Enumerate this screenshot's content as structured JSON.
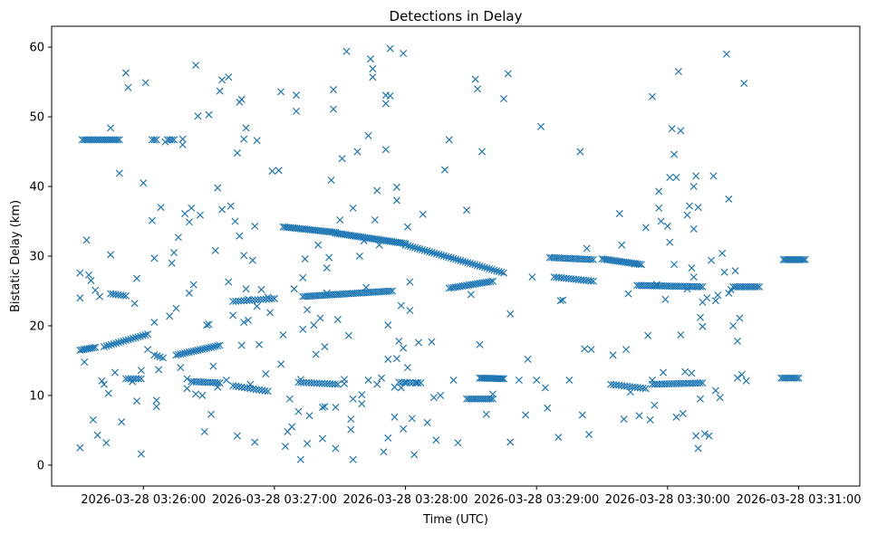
{
  "chart_data": {
    "type": "scatter",
    "title": "Detections in Delay",
    "xlabel": "Time (UTC)",
    "ylabel": "Bistatic Delay (km)",
    "x_unit": "seconds since 2026-03-28 03:26:00",
    "xlim": [
      -42,
      328
    ],
    "ylim": [
      -3,
      63
    ],
    "xticks": [
      {
        "value": 0,
        "label": "2026-03-28 03:26:00"
      },
      {
        "value": 60,
        "label": "2026-03-28 03:27:00"
      },
      {
        "value": 120,
        "label": "2026-03-28 03:28:00"
      },
      {
        "value": 180,
        "label": "2026-03-28 03:29:00"
      },
      {
        "value": 240,
        "label": "2026-03-28 03:30:00"
      },
      {
        "value": 300,
        "label": "2026-03-28 03:31:00"
      }
    ],
    "yticks": [
      0,
      10,
      20,
      30,
      40,
      50,
      60
    ],
    "marker": "x",
    "color": "#1f77b4",
    "tracks": [
      {
        "x0": -28,
        "y0": 46.7,
        "x1": -11,
        "y1": 46.7,
        "step": 0.9
      },
      {
        "x0": 4,
        "y0": 46.7,
        "x1": 6,
        "y1": 46.7,
        "step": 1
      },
      {
        "x0": 11,
        "y0": 46.7,
        "x1": 14,
        "y1": 46.7,
        "step": 1
      },
      {
        "x0": -29,
        "y0": 16.5,
        "x1": -22,
        "y1": 16.9,
        "step": 0.9
      },
      {
        "x0": -18,
        "y0": 17.0,
        "x1": 2,
        "y1": 18.8,
        "step": 1.1
      },
      {
        "x0": 15,
        "y0": 15.8,
        "x1": 35,
        "y1": 17.2,
        "step": 1.0
      },
      {
        "x0": -15,
        "y0": 24.6,
        "x1": -8,
        "y1": 24.3,
        "step": 1.2
      },
      {
        "x0": -8,
        "y0": 12.4,
        "x1": -1,
        "y1": 12.4,
        "step": 1.2
      },
      {
        "x0": 5,
        "y0": 15.8,
        "x1": 9,
        "y1": 15.4,
        "step": 1.2
      },
      {
        "x0": 22,
        "y0": 12.0,
        "x1": 35,
        "y1": 11.8,
        "step": 1.1
      },
      {
        "x0": 41,
        "y0": 23.5,
        "x1": 60,
        "y1": 23.9,
        "step": 1.3
      },
      {
        "x0": 41,
        "y0": 11.4,
        "x1": 57,
        "y1": 10.6,
        "step": 1.3
      },
      {
        "x0": 64,
        "y0": 34.2,
        "x1": 88,
        "y1": 33.4,
        "step": 0.9
      },
      {
        "x0": 88,
        "y0": 33.3,
        "x1": 120,
        "y1": 31.8,
        "step": 0.9
      },
      {
        "x0": 120,
        "y0": 31.6,
        "x1": 165,
        "y1": 27.6,
        "step": 1.1
      },
      {
        "x0": 73,
        "y0": 24.2,
        "x1": 114,
        "y1": 25.0,
        "step": 1.0
      },
      {
        "x0": 71,
        "y0": 11.9,
        "x1": 89,
        "y1": 11.6,
        "step": 1.2
      },
      {
        "x0": 117,
        "y0": 11.9,
        "x1": 127,
        "y1": 11.8,
        "step": 1.2
      },
      {
        "x0": 140,
        "y0": 25.4,
        "x1": 160,
        "y1": 26.4,
        "step": 1.0
      },
      {
        "x0": 148,
        "y0": 9.5,
        "x1": 160,
        "y1": 9.5,
        "step": 0.9
      },
      {
        "x0": 154,
        "y0": 12.5,
        "x1": 165,
        "y1": 12.4,
        "step": 0.7
      },
      {
        "x0": 186,
        "y0": 29.8,
        "x1": 206,
        "y1": 29.5,
        "step": 1.0
      },
      {
        "x0": 188,
        "y0": 27.0,
        "x1": 206,
        "y1": 26.4,
        "step": 1.1
      },
      {
        "x0": 210,
        "y0": 29.6,
        "x1": 228,
        "y1": 28.8,
        "step": 0.9
      },
      {
        "x0": 226,
        "y0": 25.8,
        "x1": 256,
        "y1": 25.6,
        "step": 1.0
      },
      {
        "x0": 214,
        "y0": 11.6,
        "x1": 230,
        "y1": 11.0,
        "step": 1.2
      },
      {
        "x0": 233,
        "y0": 11.6,
        "x1": 256,
        "y1": 11.8,
        "step": 1.1
      },
      {
        "x0": 293,
        "y0": 29.5,
        "x1": 303,
        "y1": 29.5,
        "step": 0.8
      },
      {
        "x0": 292,
        "y0": 12.5,
        "x1": 300,
        "y1": 12.5,
        "step": 0.9
      },
      {
        "x0": 270,
        "y0": 25.6,
        "x1": 282,
        "y1": 25.6,
        "step": 1.0
      }
    ],
    "points": [
      [
        -29,
        2.5
      ],
      [
        -29,
        24
      ],
      [
        -29,
        27.6
      ],
      [
        -27,
        14.8
      ],
      [
        -26,
        32.3
      ],
      [
        -25,
        27.3
      ],
      [
        -24,
        26.5
      ],
      [
        -23,
        6.5
      ],
      [
        -22,
        25.1
      ],
      [
        -21,
        4.3
      ],
      [
        -20,
        24.2
      ],
      [
        -19,
        12.1
      ],
      [
        -18,
        11.6
      ],
      [
        -17,
        3.2
      ],
      [
        -16,
        10.3
      ],
      [
        -15,
        30.2
      ],
      [
        -15,
        48.4
      ],
      [
        -13,
        13.3
      ],
      [
        -11,
        41.9
      ],
      [
        -10,
        6.2
      ],
      [
        -8,
        56.3
      ],
      [
        -7,
        54.2
      ],
      [
        -5,
        12.0
      ],
      [
        -4,
        23.2
      ],
      [
        -3,
        26.8
      ],
      [
        -3,
        9.2
      ],
      [
        -1,
        1.6
      ],
      [
        -1,
        13.6
      ],
      [
        0,
        40.5
      ],
      [
        1,
        54.9
      ],
      [
        2,
        16.6
      ],
      [
        4,
        35.1
      ],
      [
        5,
        29.7
      ],
      [
        5,
        20.5
      ],
      [
        6,
        9.3
      ],
      [
        6,
        8.4
      ],
      [
        7,
        13.7
      ],
      [
        8,
        37.0
      ],
      [
        10,
        46.4
      ],
      [
        12,
        21.4
      ],
      [
        13,
        29.0
      ],
      [
        14,
        30.5
      ],
      [
        15,
        22.5
      ],
      [
        16,
        32.7
      ],
      [
        17,
        14.0
      ],
      [
        18,
        46.8
      ],
      [
        18,
        46.0
      ],
      [
        19,
        36.1
      ],
      [
        20,
        12.4
      ],
      [
        20,
        11.0
      ],
      [
        21,
        34.9
      ],
      [
        21,
        24.7
      ],
      [
        22,
        36.9
      ],
      [
        23,
        25.9
      ],
      [
        24,
        57.4
      ],
      [
        24,
        10.2
      ],
      [
        25,
        50.1
      ],
      [
        26,
        35.9
      ],
      [
        27,
        10.0
      ],
      [
        28,
        4.8
      ],
      [
        29,
        20.1
      ],
      [
        30,
        20.2
      ],
      [
        30,
        50.3
      ],
      [
        31,
        7.3
      ],
      [
        32,
        14.2
      ],
      [
        33,
        30.8
      ],
      [
        34,
        39.8
      ],
      [
        34,
        11.2
      ],
      [
        35,
        53.7
      ],
      [
        36,
        36.7
      ],
      [
        36,
        55.3
      ],
      [
        38,
        12.2
      ],
      [
        39,
        55.7
      ],
      [
        39,
        26.3
      ],
      [
        40,
        37.2
      ],
      [
        41,
        21.5
      ],
      [
        42,
        35.0
      ],
      [
        43,
        44.8
      ],
      [
        43,
        4.2
      ],
      [
        44,
        52.1
      ],
      [
        44,
        32.9
      ],
      [
        45,
        52.5
      ],
      [
        45,
        17.2
      ],
      [
        46,
        46.8
      ],
      [
        46,
        30.1
      ],
      [
        46,
        20.5
      ],
      [
        47,
        48.4
      ],
      [
        47,
        25.3
      ],
      [
        48,
        20.8
      ],
      [
        48,
        23.8
      ],
      [
        49,
        11.6
      ],
      [
        50,
        29.4
      ],
      [
        51,
        34.3
      ],
      [
        51,
        3.3
      ],
      [
        52,
        46.6
      ],
      [
        52,
        22.8
      ],
      [
        53,
        17.3
      ],
      [
        54,
        25.2
      ],
      [
        56,
        13.1
      ],
      [
        57,
        24.1
      ],
      [
        58,
        21.9
      ],
      [
        59,
        42.2
      ],
      [
        60,
        23.9
      ],
      [
        62,
        42.3
      ],
      [
        63,
        14.5
      ],
      [
        63,
        53.6
      ],
      [
        64,
        18.7
      ],
      [
        65,
        2.7
      ],
      [
        66,
        4.8
      ],
      [
        67,
        9.5
      ],
      [
        68,
        5.5
      ],
      [
        69,
        25.3
      ],
      [
        70,
        50.8
      ],
      [
        70,
        53.1
      ],
      [
        71,
        7.7
      ],
      [
        72,
        12.3
      ],
      [
        72,
        0.8
      ],
      [
        73,
        19.5
      ],
      [
        73,
        26.9
      ],
      [
        74,
        29.6
      ],
      [
        75,
        3.1
      ],
      [
        75,
        22.3
      ],
      [
        76,
        7.1
      ],
      [
        78,
        20.1
      ],
      [
        79,
        15.9
      ],
      [
        80,
        31.6
      ],
      [
        81,
        21.1
      ],
      [
        82,
        3.8
      ],
      [
        82,
        8.3
      ],
      [
        83,
        8.4
      ],
      [
        83,
        17.0
      ],
      [
        84,
        28.3
      ],
      [
        84,
        24.7
      ],
      [
        85,
        29.8
      ],
      [
        86,
        40.9
      ],
      [
        87,
        51.1
      ],
      [
        87,
        53.9
      ],
      [
        88,
        8.3
      ],
      [
        88,
        2.4
      ],
      [
        89,
        24.5
      ],
      [
        89,
        20.9
      ],
      [
        90,
        35.2
      ],
      [
        91,
        44.0
      ],
      [
        92,
        12.3
      ],
      [
        92,
        11.7
      ],
      [
        93,
        59.4
      ],
      [
        94,
        18.6
      ],
      [
        95,
        6.6
      ],
      [
        95,
        5.1
      ],
      [
        96,
        0.8
      ],
      [
        96,
        36.9
      ],
      [
        96,
        9.5
      ],
      [
        98,
        45.0
      ],
      [
        99,
        30.0
      ],
      [
        100,
        10.1
      ],
      [
        100,
        8.8
      ],
      [
        101,
        32.2
      ],
      [
        102,
        25.5
      ],
      [
        103,
        47.3
      ],
      [
        103,
        12.2
      ],
      [
        104,
        58.3
      ],
      [
        105,
        55.7
      ],
      [
        105,
        56.9
      ],
      [
        106,
        35.2
      ],
      [
        107,
        11.6
      ],
      [
        107,
        39.4
      ],
      [
        108,
        31.6
      ],
      [
        109,
        12.5
      ],
      [
        110,
        1.9
      ],
      [
        111,
        51.9
      ],
      [
        111,
        53.1
      ],
      [
        111,
        45.3
      ],
      [
        112,
        20.1
      ],
      [
        112,
        3.9
      ],
      [
        112,
        15.2
      ],
      [
        113,
        59.8
      ],
      [
        113,
        53.0
      ],
      [
        115,
        11.2
      ],
      [
        115,
        6.9
      ],
      [
        116,
        39.9
      ],
      [
        116,
        38.0
      ],
      [
        116,
        15.3
      ],
      [
        117,
        17.8
      ],
      [
        118,
        11.1
      ],
      [
        118,
        22.9
      ],
      [
        119,
        16.8
      ],
      [
        119,
        5.2
      ],
      [
        119,
        59.1
      ],
      [
        120,
        11.8
      ],
      [
        121,
        34.2
      ],
      [
        121,
        14.0
      ],
      [
        122,
        26.3
      ],
      [
        122,
        22.2
      ],
      [
        123,
        6.7
      ],
      [
        124,
        1.5
      ],
      [
        125,
        11.8
      ],
      [
        126,
        17.6
      ],
      [
        128,
        36.0
      ],
      [
        130,
        6.1
      ],
      [
        132,
        17.7
      ],
      [
        133,
        9.7
      ],
      [
        134,
        3.6
      ],
      [
        136,
        10.0
      ],
      [
        138,
        42.4
      ],
      [
        140,
        46.7
      ],
      [
        142,
        12.2
      ],
      [
        144,
        3.2
      ],
      [
        148,
        36.6
      ],
      [
        150,
        24.5
      ],
      [
        152,
        55.4
      ],
      [
        153,
        54.0
      ],
      [
        154,
        17.3
      ],
      [
        155,
        45.0
      ],
      [
        157,
        7.3
      ],
      [
        160,
        10.2
      ],
      [
        165,
        52.6
      ],
      [
        167,
        56.2
      ],
      [
        168,
        21.7
      ],
      [
        168,
        3.3
      ],
      [
        172,
        12.2
      ],
      [
        175,
        7.2
      ],
      [
        176,
        15.2
      ],
      [
        178,
        27.0
      ],
      [
        180,
        12.2
      ],
      [
        182,
        48.6
      ],
      [
        184,
        11.1
      ],
      [
        185,
        8.2
      ],
      [
        190,
        4.0
      ],
      [
        191,
        23.6
      ],
      [
        192,
        23.7
      ],
      [
        195,
        12.2
      ],
      [
        200,
        45.0
      ],
      [
        201,
        7.2
      ],
      [
        202,
        16.7
      ],
      [
        203,
        31.1
      ],
      [
        204,
        4.4
      ],
      [
        205,
        16.6
      ],
      [
        215,
        15.8
      ],
      [
        218,
        36.1
      ],
      [
        219,
        31.6
      ],
      [
        220,
        6.6
      ],
      [
        221,
        16.6
      ],
      [
        222,
        24.6
      ],
      [
        223,
        10.5
      ],
      [
        225,
        28.9
      ],
      [
        227,
        7.1
      ],
      [
        230,
        34.1
      ],
      [
        231,
        18.6
      ],
      [
        232,
        6.5
      ],
      [
        233,
        52.9
      ],
      [
        233,
        12.2
      ],
      [
        234,
        8.6
      ],
      [
        235,
        25.9
      ],
      [
        236,
        39.3
      ],
      [
        236,
        36.9
      ],
      [
        237,
        35.0
      ],
      [
        238,
        13.3
      ],
      [
        239,
        23.8
      ],
      [
        240,
        34.3
      ],
      [
        241,
        41.3
      ],
      [
        241,
        32.0
      ],
      [
        242,
        48.3
      ],
      [
        243,
        44.6
      ],
      [
        243,
        28.8
      ],
      [
        244,
        6.9
      ],
      [
        244,
        41.3
      ],
      [
        245,
        56.5
      ],
      [
        246,
        48.0
      ],
      [
        246,
        18.7
      ],
      [
        247,
        7.4
      ],
      [
        248,
        13.4
      ],
      [
        249,
        35.9
      ],
      [
        249,
        25.3
      ],
      [
        250,
        37.2
      ],
      [
        251,
        28.3
      ],
      [
        251,
        13.2
      ],
      [
        252,
        40.0
      ],
      [
        252,
        33.9
      ],
      [
        252,
        27.0
      ],
      [
        253,
        41.5
      ],
      [
        253,
        4.2
      ],
      [
        254,
        37.0
      ],
      [
        254,
        2.4
      ],
      [
        255,
        21.2
      ],
      [
        255,
        9.5
      ],
      [
        256,
        19.9
      ],
      [
        256,
        23.4
      ],
      [
        257,
        4.5
      ],
      [
        258,
        24.0
      ],
      [
        259,
        4.2
      ],
      [
        260,
        29.4
      ],
      [
        261,
        41.5
      ],
      [
        262,
        10.7
      ],
      [
        262,
        23.6
      ],
      [
        263,
        24.4
      ],
      [
        264,
        9.7
      ],
      [
        265,
        30.4
      ],
      [
        266,
        27.7
      ],
      [
        267,
        59.0
      ],
      [
        268,
        38.2
      ],
      [
        268,
        24.7
      ],
      [
        269,
        25.2
      ],
      [
        270,
        20.0
      ],
      [
        271,
        27.9
      ],
      [
        272,
        17.8
      ],
      [
        272,
        12.5
      ],
      [
        273,
        21.1
      ],
      [
        274,
        13.0
      ],
      [
        275,
        54.8
      ],
      [
        276,
        12.1
      ]
    ]
  }
}
